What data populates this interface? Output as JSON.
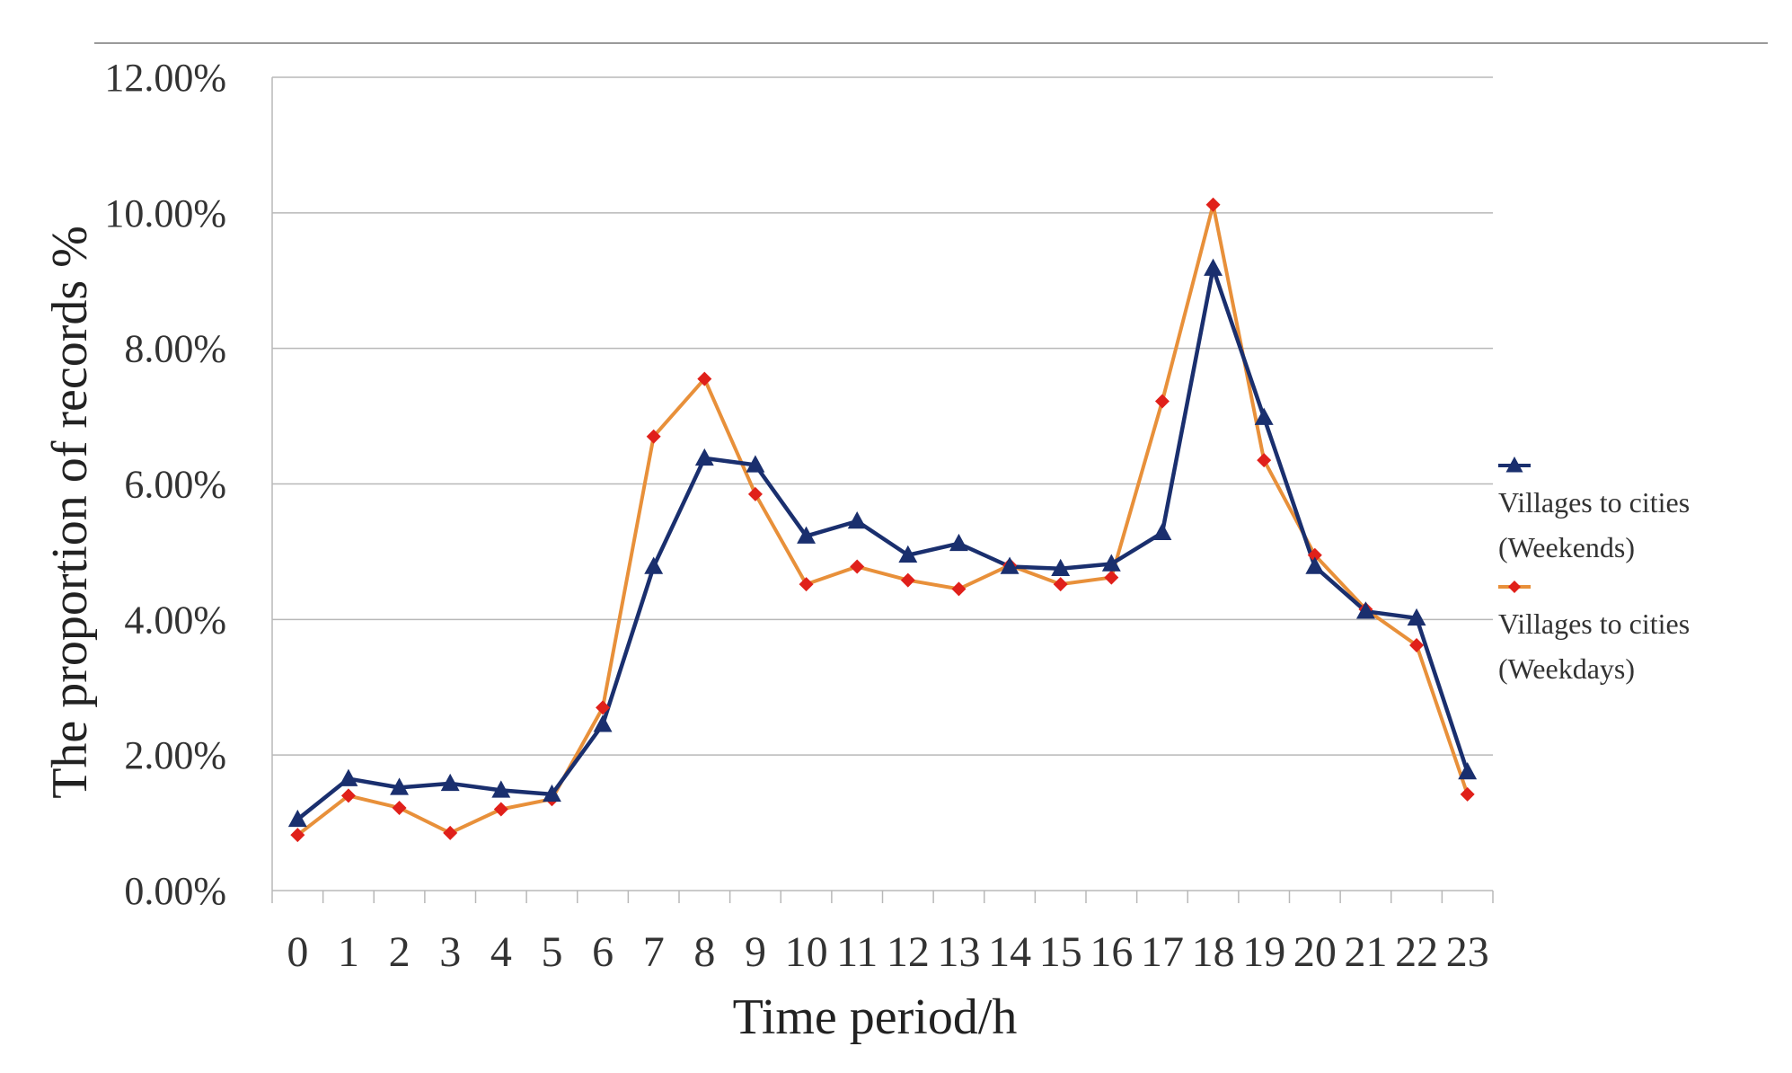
{
  "chart_data": {
    "type": "line",
    "title": "",
    "xlabel": "Time period/h",
    "ylabel": "The proportion of records %",
    "x": [
      0,
      1,
      2,
      3,
      4,
      5,
      6,
      7,
      8,
      9,
      10,
      11,
      12,
      13,
      14,
      15,
      16,
      17,
      18,
      19,
      20,
      21,
      22,
      23
    ],
    "x_tick_labels": [
      "0",
      "1",
      "2",
      "3",
      "4",
      "5",
      "6",
      "7",
      "8",
      "9",
      "10",
      "11",
      "12",
      "13",
      "14",
      "15",
      "16",
      "17",
      "18",
      "19",
      "20",
      "21",
      "22",
      "23"
    ],
    "ylim": [
      0,
      12
    ],
    "y_tick_values": [
      0,
      2,
      4,
      6,
      8,
      10,
      12
    ],
    "y_tick_labels": [
      "0.00%",
      "2.00%",
      "4.00%",
      "6.00%",
      "8.00%",
      "10.00%",
      "12.00%"
    ],
    "grid": true,
    "legend_position": "right",
    "series": [
      {
        "name": "Villages to cities (Weekends)",
        "legend_lines": [
          "Villages to cities",
          "(Weekends)"
        ],
        "marker": "triangle",
        "color": "#1a2f6e",
        "values": [
          1.05,
          1.65,
          1.52,
          1.58,
          1.48,
          1.42,
          2.45,
          4.78,
          6.38,
          6.28,
          5.23,
          5.45,
          4.95,
          5.12,
          4.78,
          4.75,
          4.82,
          5.28,
          9.18,
          6.98,
          4.78,
          4.12,
          4.02,
          1.75
        ]
      },
      {
        "name": "Villages to cities (Weekdays)",
        "legend_lines": [
          "Villages to cities",
          "(Weekdays)"
        ],
        "marker": "diamond",
        "color": "#e8903a",
        "marker_color": "#e0201a",
        "values": [
          0.82,
          1.4,
          1.22,
          0.85,
          1.2,
          1.35,
          2.7,
          6.7,
          7.55,
          5.85,
          4.52,
          4.78,
          4.58,
          4.45,
          4.8,
          4.52,
          4.62,
          7.22,
          10.12,
          6.35,
          4.95,
          4.15,
          3.62,
          1.42
        ]
      }
    ]
  }
}
